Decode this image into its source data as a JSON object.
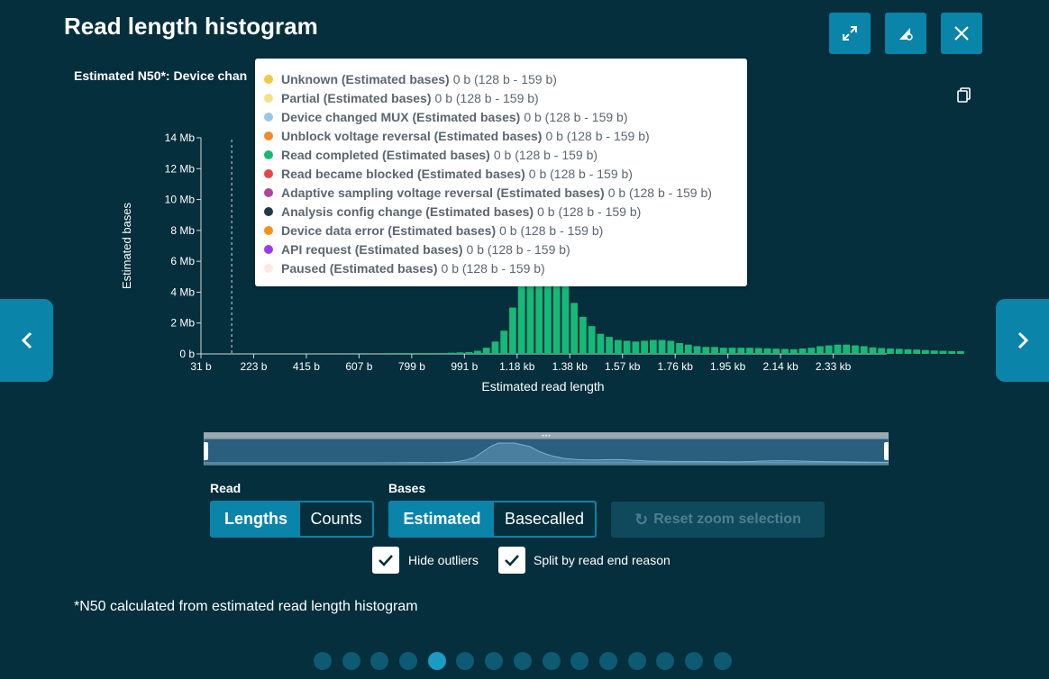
{
  "title": "Read length histogram",
  "n50_text": "Estimated N50*: Device chan",
  "tooltip": {
    "items": [
      {
        "name": "Unknown (Estimated bases)",
        "value": "0 b (128 b - 159 b)",
        "color": "#f5c842"
      },
      {
        "name": "Partial (Estimated bases)",
        "value": "0 b (128 b - 159 b)",
        "color": "#efe38a"
      },
      {
        "name": "Device changed MUX (Estimated bases)",
        "value": "0 b (128 b - 159 b)",
        "color": "#9cc8e8"
      },
      {
        "name": "Unblock voltage reversal (Estimated bases)",
        "value": "0 b (128 b - 159 b)",
        "color": "#f08a2c"
      },
      {
        "name": "Read completed (Estimated bases)",
        "value": "0 b (128 b - 159 b)",
        "color": "#17b978"
      },
      {
        "name": "Read became blocked (Estimated bases)",
        "value": "0 b (128 b - 159 b)",
        "color": "#e84545"
      },
      {
        "name": "Adaptive sampling voltage reversal (Estimated bases)",
        "value": "0 b (128 b - 159 b)",
        "color": "#a84a9a"
      },
      {
        "name": "Analysis config change (Estimated bases)",
        "value": "0 b (128 b - 159 b)",
        "color": "#1f3a4a"
      },
      {
        "name": "Device data error (Estimated bases)",
        "value": "0 b (128 b - 159 b)",
        "color": "#f0941c"
      },
      {
        "name": "API request (Estimated bases)",
        "value": "0 b (128 b - 159 b)",
        "color": "#9b3bf0"
      },
      {
        "name": "Paused (Estimated bases)",
        "value": "0 b (128 b - 159 b)",
        "color": "#fbe9e4"
      }
    ]
  },
  "chart_data": {
    "type": "bar",
    "xlabel": "Estimated read length",
    "ylabel": "Estimated bases",
    "y_ticks": [
      "0 b",
      "2 Mb",
      "4 Mb",
      "6 Mb",
      "8 Mb",
      "10 Mb",
      "12 Mb",
      "14 Mb"
    ],
    "ylim": [
      0,
      14
    ],
    "y_unit": "Mb",
    "x_ticks": [
      "31 b",
      "223 b",
      "415 b",
      "607 b",
      "799 b",
      "991 b",
      "1.18 kb",
      "1.38 kb",
      "1.57 kb",
      "1.76 kb",
      "1.95 kb",
      "2.14 kb",
      "2.33 kb"
    ],
    "xlim_bases": [
      31,
      2530
    ],
    "bin_width_bases": 32,
    "n50_marker_bases": 143,
    "series": [
      {
        "color": "#17b978",
        "values": [
          0,
          0,
          0,
          0,
          0,
          0,
          0,
          0,
          0,
          0,
          0,
          0,
          0,
          0,
          0,
          0,
          0,
          0,
          0,
          0,
          0,
          0.01,
          0.02,
          0.03,
          0.03,
          0.04,
          0.05,
          0.06,
          0.08,
          0.1,
          0.12,
          0.2,
          0.4,
          0.8,
          1.5,
          3.0,
          4.5,
          5.5,
          5.5,
          5.5,
          5.0,
          4.5,
          3.3,
          2.4,
          1.8,
          1.3,
          1.1,
          0.9,
          0.85,
          0.8,
          0.85,
          0.9,
          0.9,
          0.85,
          0.7,
          0.6,
          0.5,
          0.45,
          0.45,
          0.4,
          0.4,
          0.4,
          0.4,
          0.38,
          0.36,
          0.34,
          0.32,
          0.3,
          0.35,
          0.4,
          0.5,
          0.55,
          0.6,
          0.6,
          0.55,
          0.5,
          0.42,
          0.38,
          0.35,
          0.33,
          0.3,
          0.28,
          0.25,
          0.22,
          0.2,
          0.18,
          0.18
        ]
      }
    ]
  },
  "controls": {
    "read_label": "Read",
    "read_options": [
      "Lengths",
      "Counts"
    ],
    "read_selected": "Lengths",
    "bases_label": "Bases",
    "bases_options": [
      "Estimated",
      "Basecalled"
    ],
    "bases_selected": "Estimated",
    "reset_label": "Reset zoom selection",
    "hide_outliers_label": "Hide outliers",
    "hide_outliers_checked": true,
    "split_label": "Split by read end reason",
    "split_checked": true
  },
  "footnote": "*N50 calculated from estimated read length histogram",
  "pagination": {
    "total": 15,
    "active_index": 4
  }
}
